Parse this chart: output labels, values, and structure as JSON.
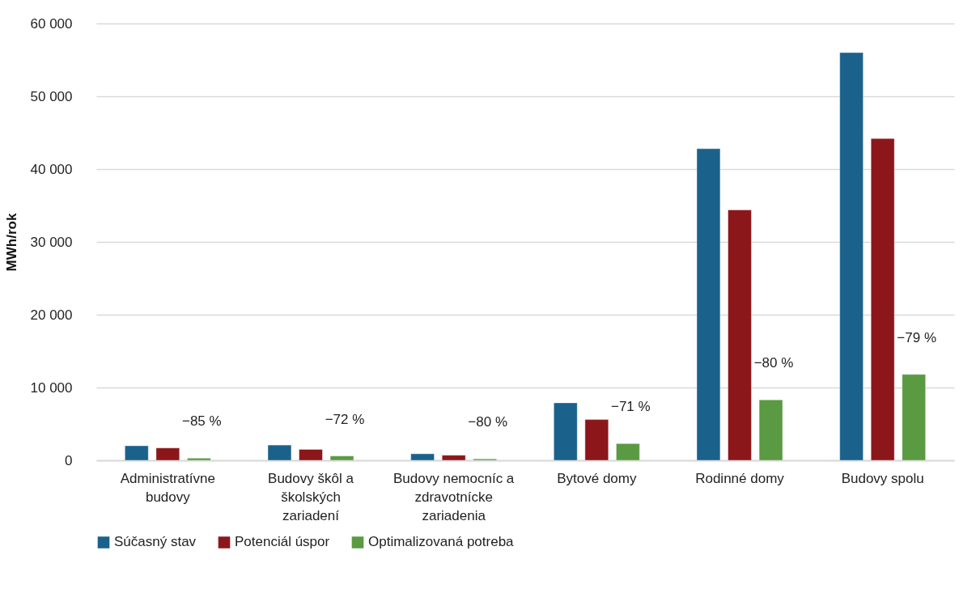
{
  "chart_data": {
    "type": "bar",
    "ylabel": "MWh/rok",
    "categories": [
      "Administratívne budovy",
      "Budovy škôl a školských zariadení",
      "Budovy nemocníc a zdravotnícke zariadenia",
      "Bytové domy",
      "Rodinné domy",
      "Budovy spolu"
    ],
    "series": [
      {
        "name": "Súčasný stav",
        "color": "#1a628b",
        "values": [
          2000,
          2100,
          900,
          7900,
          42800,
          56000
        ]
      },
      {
        "name": "Potenciál úspor",
        "color": "#8c171b",
        "values": [
          1700,
          1500,
          700,
          5600,
          34400,
          44200
        ]
      },
      {
        "name": "Optimalizovaná potreba",
        "color": "#5a9a42",
        "values": [
          300,
          600,
          200,
          2300,
          8300,
          11800
        ]
      }
    ],
    "ylim": [
      0,
      60000
    ],
    "yticks": [
      {
        "value": 0,
        "label": "0"
      },
      {
        "value": 10000,
        "label": "10 000"
      },
      {
        "value": 20000,
        "label": "20 000"
      },
      {
        "value": 30000,
        "label": "30 000"
      },
      {
        "value": 40000,
        "label": "40 000"
      },
      {
        "value": 50000,
        "label": "50 000"
      },
      {
        "value": 60000,
        "label": "60 000"
      }
    ],
    "grid": "y",
    "legend": "bottom",
    "annotations": [
      "−85 %",
      "−72 %",
      "−80 %",
      "−71 %",
      "−80 %",
      "−79 %"
    ]
  }
}
